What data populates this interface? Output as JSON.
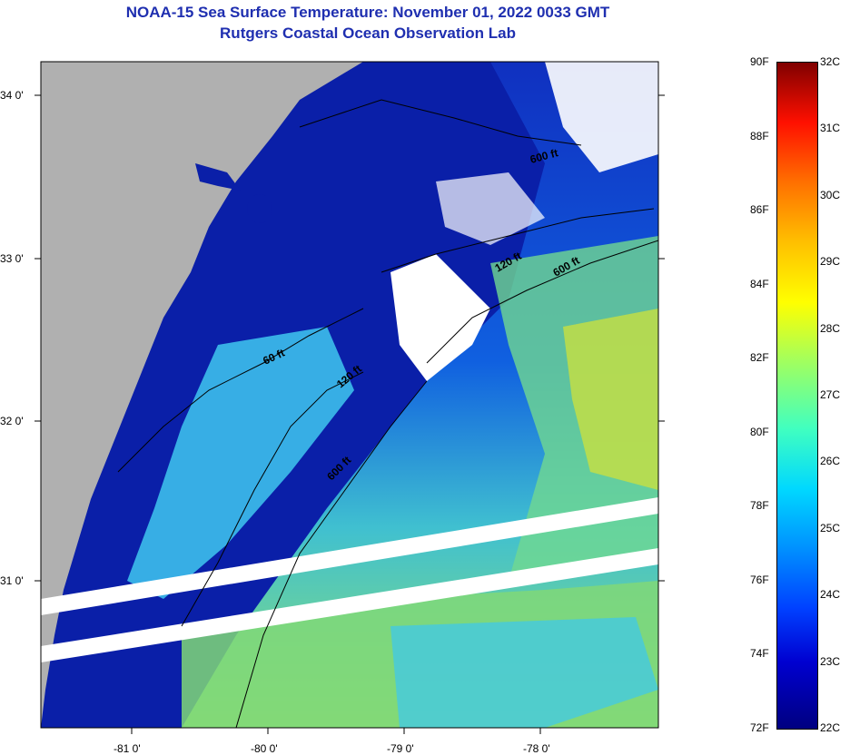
{
  "title": "NOAA-15 Sea Surface Temperature:  November 01, 2022 0033 GMT",
  "subtitle": "Rutgers Coastal Ocean Observation Lab",
  "lat_labels": [
    "34 0'",
    "33 0'",
    "32 0'",
    "31 0'"
  ],
  "lon_labels": [
    "-81 0'",
    "-80 0'",
    "-79 0'",
    "-78 0'"
  ],
  "contour_labels": [
    "600 ft",
    "120 ft",
    "600 ft",
    "60 ft",
    "120 ft",
    "600 ft"
  ],
  "colorbar": {
    "fahrenheit": [
      "90F",
      "88F",
      "86F",
      "84F",
      "82F",
      "80F",
      "78F",
      "76F",
      "74F",
      "72F"
    ],
    "celsius": [
      "32C",
      "31C",
      "30C",
      "29C",
      "28C",
      "27C",
      "26C",
      "25C",
      "24C",
      "23C",
      "22C"
    ],
    "range_f": [
      72,
      90
    ],
    "range_c": [
      22,
      32
    ]
  },
  "colors": {
    "title": "#1f2fb0",
    "land": "#b0b0b0",
    "cloud": "#ffffff",
    "cold_water": "#0a1fa8"
  }
}
